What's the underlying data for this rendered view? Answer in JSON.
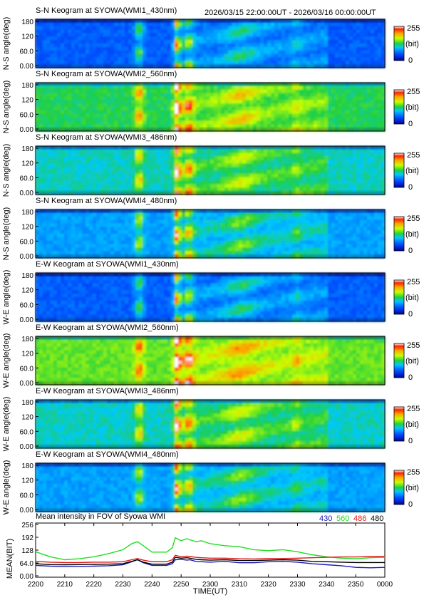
{
  "header": {
    "time_range": "2026/03/15 22:00:00UT - 2026/03/16 00:00:00UT"
  },
  "colorbar": {
    "max_label": "255",
    "unit_label": "(bit)",
    "min_label": "0"
  },
  "keograms": [
    {
      "title": "S-N Keogram at SYOWA(WMI1_430nm)",
      "ylabel": "N-S angle(deg)",
      "yticks": [
        "180",
        "120",
        "60.0",
        "0.00"
      ],
      "base": 0.18
    },
    {
      "title": "S-N Keogram at SYOWA(WMI2_560nm)",
      "ylabel": "N-S angle(deg)",
      "yticks": [
        "180",
        "120",
        "60.0",
        "0.00"
      ],
      "base": 0.45
    },
    {
      "title": "S-N Keogram at SYOWA(WMI3_486nm)",
      "ylabel": "N-S angle(deg)",
      "yticks": [
        "180",
        "120",
        "60.0",
        "0.00"
      ],
      "base": 0.38
    },
    {
      "title": "S-N Keogram at SYOWA(WMI4_480nm)",
      "ylabel": "N-S angle(deg)",
      "yticks": [
        "180",
        "120",
        "60.0",
        "0.00"
      ],
      "base": 0.28
    },
    {
      "title": "E-W Keogram at SYOWA(WMI1_430nm)",
      "ylabel": "W-E angle(deg)",
      "yticks": [
        "180",
        "120",
        "60.0",
        "0.00"
      ],
      "base": 0.18
    },
    {
      "title": "E-W Keogram at SYOWA(WMI2_560nm)",
      "ylabel": "W-E angle(deg)",
      "yticks": [
        "180",
        "120",
        "60.0",
        "0.00"
      ],
      "base": 0.52
    },
    {
      "title": "E-W Keogram at SYOWA(WMI3_486nm)",
      "ylabel": "W-E angle(deg)",
      "yticks": [
        "180",
        "120",
        "60.0",
        "0.00"
      ],
      "base": 0.38
    },
    {
      "title": "E-W Keogram at SYOWA(WMI4_480nm)",
      "ylabel": "W-E angle(deg)",
      "yticks": [
        "180",
        "120",
        "60.0",
        "0.00"
      ],
      "base": 0.28
    }
  ],
  "chart_data": {
    "type": "line",
    "title": "Mean intensity in FOV of Syowa WMI",
    "xlabel": "TIME(UT)",
    "ylabel": "MEAN(BIT)",
    "x_ticks": [
      "2200",
      "2210",
      "2220",
      "2230",
      "2240",
      "2250",
      "2300",
      "2310",
      "2320",
      "2330",
      "2340",
      "2350",
      "0000"
    ],
    "y_ticks": [
      256,
      192,
      128,
      64.0,
      0.0
    ],
    "ylim": [
      0,
      256
    ],
    "x": [
      0,
      5,
      10,
      15,
      20,
      25,
      30,
      33,
      35,
      37,
      40,
      45,
      47,
      48,
      50,
      52,
      53,
      55,
      57,
      60,
      65,
      70,
      75,
      80,
      85,
      90,
      95,
      100,
      105,
      110,
      115,
      120
    ],
    "series": [
      {
        "name": "430",
        "color": "#1a1ab4",
        "values": [
          52,
          48,
          46,
          47,
          48,
          50,
          55,
          70,
          80,
          65,
          52,
          52,
          60,
          80,
          82,
          78,
          80,
          72,
          70,
          68,
          72,
          65,
          65,
          70,
          72,
          68,
          60,
          55,
          50,
          42,
          40,
          42
        ]
      },
      {
        "name": "560",
        "color": "#22dd22",
        "values": [
          120,
          95,
          80,
          85,
          95,
          110,
          130,
          160,
          170,
          150,
          118,
          118,
          140,
          190,
          175,
          185,
          180,
          170,
          175,
          160,
          150,
          145,
          130,
          125,
          130,
          120,
          105,
          95,
          88,
          85,
          90,
          92
        ]
      },
      {
        "name": "486",
        "color": "#dd1a1a",
        "values": [
          72,
          68,
          66,
          66,
          68,
          68,
          70,
          80,
          86,
          78,
          70,
          70,
          80,
          102,
          95,
          98,
          96,
          92,
          90,
          88,
          88,
          85,
          84,
          86,
          86,
          88,
          90,
          92,
          94,
          94,
          96,
          96
        ]
      },
      {
        "name": "480",
        "color": "#000000",
        "values": [
          60,
          56,
          55,
          56,
          57,
          58,
          60,
          72,
          80,
          68,
          58,
          58,
          68,
          92,
          88,
          90,
          88,
          82,
          80,
          78,
          80,
          76,
          76,
          78,
          80,
          78,
          72,
          70,
          68,
          66,
          66,
          66
        ]
      }
    ],
    "legend_position": "top-right"
  }
}
